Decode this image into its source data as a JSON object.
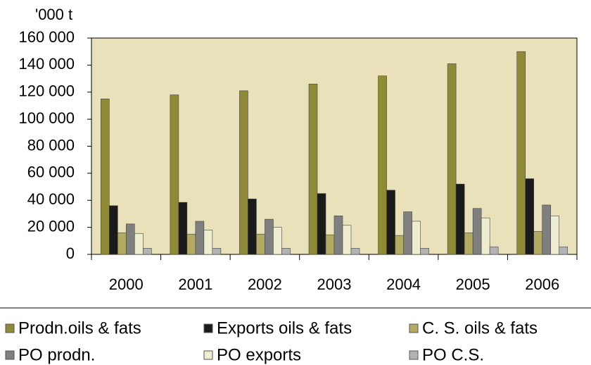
{
  "chart_data": {
    "type": "bar",
    "y_axis_label": "'000 t",
    "categories": [
      "2000",
      "2001",
      "2002",
      "2003",
      "2004",
      "2005",
      "2006"
    ],
    "series": [
      {
        "name": "Prodn.oils & fats",
        "color": "#8f8a35",
        "values": [
          115000,
          118000,
          121000,
          126000,
          132000,
          141000,
          150000
        ]
      },
      {
        "name": "Exports oils & fats",
        "color": "#1a1a1a",
        "values": [
          36000,
          38500,
          41000,
          45000,
          47500,
          52000,
          56000
        ]
      },
      {
        "name": "C. S. oils & fats",
        "color": "#b3ab62",
        "values": [
          16000,
          15000,
          15000,
          14500,
          14000,
          16000,
          17000
        ]
      },
      {
        "name": "PO prodn.",
        "color": "#7f7f7f",
        "values": [
          22500,
          24500,
          26000,
          28500,
          31500,
          34000,
          36500
        ]
      },
      {
        "name": "PO exports",
        "color": "#efedcf",
        "values": [
          15500,
          18000,
          20000,
          21500,
          24500,
          27000,
          28500
        ]
      },
      {
        "name": "PO C.S.",
        "color": "#b3b3b3",
        "values": [
          4500,
          4500,
          4500,
          4500,
          4500,
          5500,
          5500
        ]
      }
    ],
    "ylim": [
      0,
      160000
    ],
    "yticks": [
      0,
      {
        "value": 20000,
        "label": "20 000"
      },
      {
        "value": 40000,
        "label": "40 000"
      },
      {
        "value": 60000,
        "label": "60 000"
      },
      {
        "value": 80000,
        "label": "80 000"
      },
      {
        "value": 100000,
        "label": "100 000"
      },
      {
        "value": 120000,
        "label": "120 000"
      },
      {
        "value": 140000,
        "label": "140 000"
      },
      {
        "value": 160000,
        "label": "160 000"
      }
    ],
    "plot_background": "#e8e1b9",
    "grid": false,
    "legend": "bottom"
  }
}
